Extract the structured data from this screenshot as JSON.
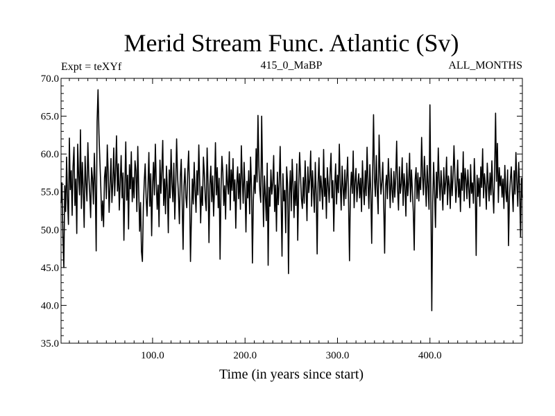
{
  "chart_data": {
    "type": "line",
    "title": "Merid Stream Func. Atlantic (Sv)",
    "subtitle_left": "Expt = teXYf",
    "subtitle_center": "415_0_MaBP",
    "subtitle_right": "ALL_MONTHS",
    "xlabel": "Time (in years since start)",
    "ylabel": "",
    "xlim": [
      1,
      500
    ],
    "ylim": [
      35,
      70
    ],
    "x_ticks": [
      100,
      200,
      300,
      400
    ],
    "x_tick_labels": [
      "100.0",
      "200.0",
      "300.0",
      "400.0"
    ],
    "y_ticks": [
      35,
      40,
      45,
      50,
      55,
      60,
      65,
      70
    ],
    "y_tick_labels": [
      "35.0",
      "40.0",
      "45.0",
      "50.0",
      "55.0",
      "60.0",
      "65.0",
      "70.0"
    ],
    "grid": false,
    "line_color": "#000000",
    "series": [
      {
        "x_start": 1,
        "x_step": 1,
        "values": [
          53.5,
          56.2,
          49.1,
          45.0,
          55.8,
          52.4,
          59.6,
          54.0,
          50.7,
          62.1,
          55.3,
          57.8,
          51.9,
          58.4,
          60.9,
          53.2,
          56.7,
          49.5,
          61.3,
          57.1,
          54.6,
          63.2,
          52.8,
          58.9,
          55.4,
          50.3,
          59.7,
          56.2,
          53.8,
          61.5,
          57.3,
          54.9,
          51.6,
          58.2,
          56.8,
          53.4,
          60.1,
          55.7,
          47.2,
          64.3,
          68.5,
          62.7,
          59.1,
          55.6,
          51.2,
          53.8,
          50.4,
          56.9,
          58.3,
          54.1,
          61.2,
          57.6,
          52.3,
          55.9,
          59.4,
          53.6,
          56.2,
          60.8,
          54.5,
          57.9,
          62.4,
          55.1,
          58.7,
          52.6,
          56.3,
          59.8,
          54.2,
          57.5,
          48.6,
          55.8,
          61.6,
          53.9,
          57.2,
          50.1,
          58.6,
          55.4,
          60.3,
          53.7,
          56.9,
          54.2,
          59.1,
          57.8,
          52.4,
          61.0,
          55.3,
          49.8,
          53.6,
          47.1,
          45.8,
          52.9,
          56.4,
          58.7,
          54.3,
          51.8,
          55.6,
          60.2,
          53.1,
          57.4,
          49.2,
          55.8,
          58.9,
          54.6,
          61.3,
          56.2,
          52.7,
          55.9,
          50.4,
          59.2,
          54.8,
          57.6,
          61.8,
          53.2,
          56.7,
          52.1,
          58.4,
          55.3,
          49.6,
          57.9,
          54.2,
          60.6,
          56.1,
          53.7,
          58.8,
          51.4,
          55.6,
          62.0,
          57.2,
          54.5,
          50.8,
          56.9,
          59.3,
          53.6,
          47.4,
          55.8,
          58.1,
          54.3,
          52.9,
          57.6,
          60.4,
          55.2,
          45.8,
          51.6,
          56.7,
          53.4,
          58.9,
          55.1,
          52.3,
          57.8,
          54.6,
          61.2,
          56.3,
          50.9,
          55.7,
          53.2,
          59.6,
          57.4,
          54.1,
          52.5,
          60.8,
          56.2,
          48.3,
          55.9,
          58.4,
          53.7,
          57.1,
          51.8,
          55.4,
          61.5,
          54.6,
          58.2,
          52.9,
          56.8,
          46.1,
          55.3,
          59.7,
          57.6,
          53.2,
          55.8,
          51.4,
          58.6,
          56.1,
          54.7,
          60.3,
          52.6,
          57.9,
          55.2,
          59.4,
          53.8,
          56.6,
          50.2,
          55.9,
          58.3,
          54.1,
          57.4,
          52.7,
          61.1,
          56.8,
          53.5,
          58.9,
          55.3,
          49.7,
          56.4,
          54.2,
          57.8,
          52.1,
          59.6,
          55.7,
          45.6,
          53.9,
          57.2,
          54.8,
          60.7,
          56.3,
          52.8,
          58.4,
          55.1,
          53.6,
          65.0,
          56.9,
          50.4,
          57.1,
          54.5,
          51.2,
          58.8,
          45.3,
          55.6,
          53.1,
          57.9,
          54.7,
          56.2,
          59.8,
          52.4,
          55.9,
          49.8,
          57.6,
          53.3,
          56.1,
          61.0,
          54.2,
          46.5,
          57.4,
          53.8,
          55.2,
          49.6,
          58.3,
          56.1,
          44.2,
          54.7,
          57.8,
          52.5,
          59.3,
          55.9,
          51.6,
          56.4,
          53.2,
          58.7,
          48.6,
          55.4,
          60.2,
          57.3,
          54.1,
          52.8,
          56.9,
          53.5,
          59.1,
          55.6,
          51.2,
          58.3,
          54.9,
          56.7,
          60.4,
          53.1,
          57.8,
          55.2,
          52.3,
          58.9,
          54.6,
          46.8,
          56.2,
          59.5,
          53.8,
          57.1,
          55.3,
          52.7,
          60.6,
          54.4,
          56.8,
          51.5,
          58.2,
          55.9,
          53.6,
          57.4,
          60.1,
          54.2,
          56.5,
          49.8,
          55.8,
          58.7,
          53.4,
          57.2,
          54.9,
          61.3,
          56.1,
          52.6,
          58.4,
          55.7,
          53.2,
          57.9,
          54.1,
          56.8,
          59.6,
          53.5,
          45.9,
          55.2,
          57.6,
          54.8,
          60.4,
          52.9,
          56.3,
          58.1,
          53.7,
          55.9,
          57.4,
          54.2,
          56.8,
          52.4,
          59.1,
          55.6,
          53.3,
          57.8,
          54.5,
          60.9,
          56.2,
          52.8,
          58.6,
          55.1,
          48.2,
          57.3,
          53.9,
          56.7,
          54.4,
          59.8,
          55.2,
          52.1,
          62.5,
          57.6,
          54.7,
          56.3,
          58.9,
          53.4,
          46.9,
          55.8,
          57.2,
          54.1,
          59.4,
          56.6,
          52.9,
          58.1,
          55.3,
          53.6,
          57.7,
          54.3,
          56.9,
          61.7,
          55.4,
          52.6,
          58.3,
          54.8,
          56.1,
          59.5,
          53.2,
          57.4,
          55.7,
          51.8,
          58.8,
          54.5,
          56.3,
          60.1,
          53.7,
          57.9,
          55.2,
          52.4,
          47.3,
          56.6,
          58.2,
          54.1,
          57.5,
          53.8,
          56.9,
          55.3,
          62.2,
          57.1,
          54.6,
          59.7,
          56.4,
          53.1,
          58.5,
          55.8,
          52.7,
          57.3,
          54.4,
          56.8,
          53.5,
          58.9,
          55.1,
          50.3,
          57.6,
          54.2,
          60.8,
          56.5,
          53.9,
          57.8,
          55.4,
          52.6,
          58.2,
          54.7,
          56.3,
          59.6,
          53.3,
          57.1,
          55.9,
          52.8,
          58.4,
          54.5,
          56.9,
          61.1,
          57.3,
          53.6,
          55.8,
          59.2,
          54.3,
          56.7,
          52.4,
          57.5,
          55.2,
          60.3,
          53.8,
          58.1,
          56.6,
          54.1,
          57.9,
          55.4,
          52.9,
          58.6,
          54.8,
          56.2,
          53.5,
          59.4,
          55.7,
          46.6,
          57.2,
          54.4,
          56.8,
          53.1,
          58.3,
          55.6,
          60.7,
          54.2,
          57.4,
          55.9,
          52.7,
          58.8,
          56.1,
          53.8,
          57.5,
          54.6,
          59.1,
          55.3,
          52.2,
          57.7,
          54.9,
          56.4,
          61.4,
          53.6,
          58.2,
          55.8,
          57.1,
          54.3,
          56.7,
          52.8,
          58.5,
          55.1,
          53.7,
          57.9,
          47.9,
          54.4,
          56.6,
          58.3,
          55.2,
          52.4,
          57.8,
          54.7,
          60.2,
          56.3,
          53.1,
          58.9,
          55.5,
          49.1,
          56.8,
          54.2
        ]
      }
    ],
    "spikes": [
      {
        "x": 402,
        "y": 39.3
      },
      {
        "x": 400,
        "y": 66.5
      },
      {
        "x": 471,
        "y": 65.4
      },
      {
        "x": 339,
        "y": 65.2
      },
      {
        "x": 214,
        "y": 65.1
      }
    ]
  }
}
